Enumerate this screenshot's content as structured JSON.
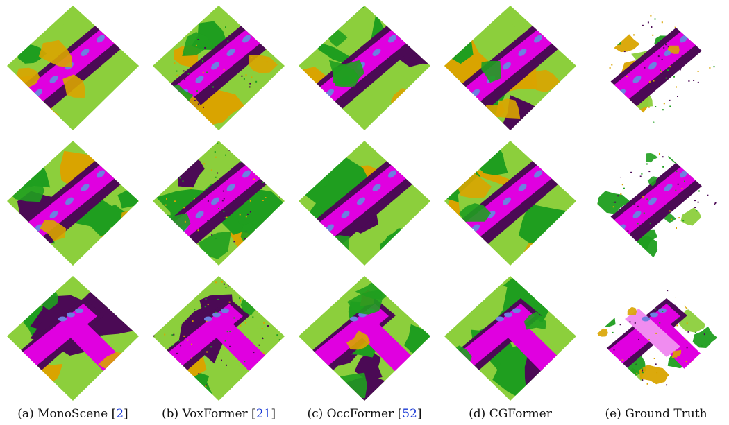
{
  "figure": {
    "columns": [
      {
        "letter": "(a)",
        "method": "MonoScene",
        "citation": "2"
      },
      {
        "letter": "(b)",
        "method": "VoxFormer",
        "citation": "21"
      },
      {
        "letter": "(c)",
        "method": "OccFormer",
        "citation": "52"
      },
      {
        "letter": "(d)",
        "method": "CGFormer",
        "citation": ""
      },
      {
        "letter": "(e)",
        "method": "Ground Truth",
        "citation": ""
      }
    ],
    "rows": 3
  },
  "colors": {
    "road": "#e000e0",
    "sidewalk": "#4b0a55",
    "vegetation": "#1f9e1f",
    "terrain": "#8ccf3c",
    "building": "#d9a400",
    "car": "#6e7fe0",
    "parking": "#f08cf0",
    "other": "#e06a2a"
  }
}
